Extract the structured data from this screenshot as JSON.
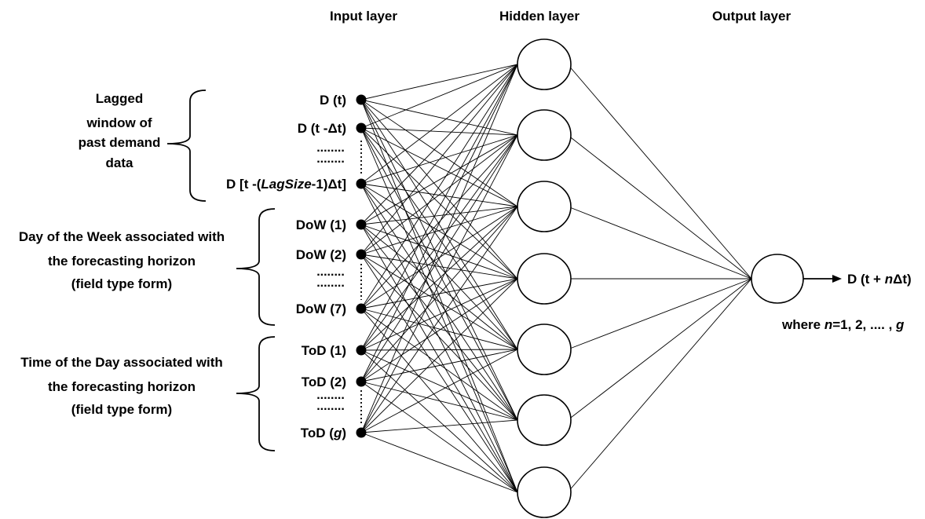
{
  "layers": {
    "input_title": "Input layer",
    "hidden_title": "Hidden layer",
    "output_title": "Output layer"
  },
  "groups": [
    {
      "id": "lag",
      "label_lines": [
        "Lagged",
        "window of",
        "past demand",
        "data"
      ],
      "inputs": [
        [
          {
            "t": "D (t)"
          }
        ],
        [
          {
            "t": "D (t -"
          },
          {
            "t": "Δ"
          },
          {
            "t": "t)"
          }
        ],
        [
          {
            "t": "D [t -("
          },
          {
            "t": "LagSize",
            "i": true
          },
          {
            "t": "-1)"
          },
          {
            "t": "Δ"
          },
          {
            "t": "t]"
          }
        ]
      ]
    },
    {
      "id": "dow",
      "label_lines": [
        "Day of the Week associated with",
        "the forecasting horizon",
        "(field type form)"
      ],
      "inputs": [
        [
          {
            "t": "DoW (1)"
          }
        ],
        [
          {
            "t": "DoW (2)"
          }
        ],
        [
          {
            "t": "DoW (7)"
          }
        ]
      ]
    },
    {
      "id": "tod",
      "label_lines": [
        "Time of the Day associated with",
        "the forecasting horizon",
        "(field type form)"
      ],
      "inputs": [
        [
          {
            "t": "ToD (1)"
          }
        ],
        [
          {
            "t": "ToD (2)"
          }
        ],
        [
          {
            "t": "ToD ("
          },
          {
            "t": "g",
            "i": true
          },
          {
            "t": ")"
          }
        ]
      ]
    }
  ],
  "ellipsis": "........",
  "hidden_node_count": 7,
  "output": {
    "label": [
      {
        "t": "D (t + "
      },
      {
        "t": "n",
        "i": true
      },
      {
        "t": "Δ"
      },
      {
        "t": "t)"
      }
    ],
    "note": [
      {
        "t": "where "
      },
      {
        "t": "n",
        "i": true
      },
      {
        "t": "=1, 2, .... , "
      },
      {
        "t": "g",
        "i": true
      }
    ]
  }
}
